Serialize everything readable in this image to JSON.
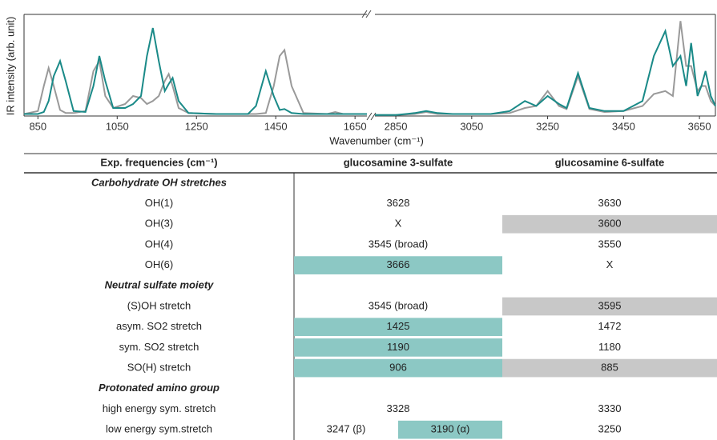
{
  "chart_data": [
    {
      "type": "line",
      "ylabel": "IR intensity (arb. unit)",
      "xlim": [
        815,
        1680
      ],
      "ylim": [
        0,
        1
      ],
      "xticks": [
        850,
        1050,
        1250,
        1450,
        1650
      ],
      "x": [
        815,
        850,
        865,
        877,
        890,
        906,
        920,
        940,
        970,
        990,
        1005,
        1020,
        1040,
        1070,
        1090,
        1110,
        1125,
        1140,
        1155,
        1170,
        1180,
        1190,
        1205,
        1230,
        1300,
        1380,
        1400,
        1425,
        1445,
        1460,
        1472,
        1490,
        1520,
        1580,
        1600,
        1620,
        1680
      ],
      "series": [
        {
          "color": "#999999",
          "values": [
            0.02,
            0.05,
            0.3,
            0.48,
            0.3,
            0.06,
            0.03,
            0.03,
            0.05,
            0.45,
            0.55,
            0.2,
            0.08,
            0.12,
            0.2,
            0.18,
            0.12,
            0.15,
            0.2,
            0.35,
            0.42,
            0.3,
            0.08,
            0.03,
            0.02,
            0.02,
            0.02,
            0.03,
            0.3,
            0.6,
            0.66,
            0.3,
            0.03,
            0.02,
            0.04,
            0.02,
            0.02
          ]
        },
        {
          "color": "#1a8a88",
          "values": [
            0.02,
            0.02,
            0.04,
            0.15,
            0.4,
            0.55,
            0.35,
            0.05,
            0.04,
            0.3,
            0.6,
            0.35,
            0.08,
            0.08,
            0.12,
            0.2,
            0.6,
            0.88,
            0.55,
            0.25,
            0.32,
            0.38,
            0.15,
            0.03,
            0.02,
            0.02,
            0.1,
            0.45,
            0.2,
            0.06,
            0.07,
            0.03,
            0.02,
            0.02,
            0.02,
            0.02,
            0.02
          ]
        }
      ]
    },
    {
      "type": "line",
      "xlabel": "Wavenumber (cm⁻¹)",
      "xlim": [
        2795,
        3692
      ],
      "ylim": [
        0,
        1
      ],
      "xticks": [
        2850,
        3050,
        3250,
        3450,
        3650
      ],
      "x": [
        2795,
        2850,
        2900,
        2930,
        2960,
        3000,
        3100,
        3150,
        3190,
        3220,
        3250,
        3280,
        3300,
        3330,
        3360,
        3400,
        3450,
        3500,
        3530,
        3560,
        3580,
        3600,
        3615,
        3628,
        3645,
        3655,
        3666,
        3680,
        3692
      ],
      "series": [
        {
          "color": "#999999",
          "values": [
            0.01,
            0.01,
            0.02,
            0.04,
            0.02,
            0.02,
            0.02,
            0.03,
            0.08,
            0.1,
            0.25,
            0.1,
            0.07,
            0.4,
            0.07,
            0.04,
            0.05,
            0.1,
            0.22,
            0.25,
            0.2,
            0.95,
            0.5,
            0.5,
            0.25,
            0.3,
            0.3,
            0.15,
            0.1
          ]
        },
        {
          "color": "#1a8a88",
          "values": [
            0.01,
            0.01,
            0.03,
            0.05,
            0.03,
            0.02,
            0.02,
            0.05,
            0.15,
            0.1,
            0.2,
            0.12,
            0.08,
            0.43,
            0.08,
            0.05,
            0.05,
            0.15,
            0.6,
            0.85,
            0.5,
            0.6,
            0.3,
            0.73,
            0.2,
            0.3,
            0.45,
            0.2,
            0.1
          ]
        }
      ]
    }
  ],
  "table": {
    "columns": [
      "Exp. frequencies (cm⁻¹)",
      "glucosamine 3-sulfate",
      "glucosamine 6-sulfate"
    ],
    "rows": [
      {
        "section": "Carbohydrate OH stretches"
      },
      {
        "cells": [
          "OH(1)",
          "3628",
          "3630"
        ]
      },
      {
        "cells": [
          "OH(3)",
          "X",
          {
            "text": "3600",
            "fill": "#c8c8c8"
          }
        ]
      },
      {
        "cells": [
          "OH(4)",
          "3545 (broad)",
          "3550"
        ]
      },
      {
        "cells": [
          "OH(6)",
          {
            "text": "3666",
            "fill": "#8cc8c4"
          },
          "X"
        ]
      },
      {
        "section": "Neutral sulfate moiety"
      },
      {
        "cells": [
          "(S)OH stretch",
          "3545 (broad)",
          {
            "text": "3595",
            "fill": "#c8c8c8"
          }
        ]
      },
      {
        "cells": [
          "asym. SO2 stretch",
          {
            "text": "1425",
            "fill": "#8cc8c4"
          },
          "1472"
        ]
      },
      {
        "cells": [
          "sym. SO2 stretch",
          {
            "text": "1190",
            "fill": "#8cc8c4"
          },
          "1180"
        ]
      },
      {
        "cells": [
          "SO(H) stretch",
          {
            "text": "906",
            "fill": "#8cc8c4"
          },
          {
            "text": "885",
            "fill": "#c8c8c8"
          }
        ]
      },
      {
        "section": "Protonated amino group"
      },
      {
        "cells": [
          "high energy sym. stretch",
          "3328",
          "3330"
        ]
      },
      {
        "cells": [
          "low energy sym.stretch",
          [
            {
              "text": "3247 (β)"
            },
            {
              "text": "3190 (α)",
              "fill": "#8cc8c4"
            }
          ],
          "3250"
        ]
      }
    ]
  }
}
